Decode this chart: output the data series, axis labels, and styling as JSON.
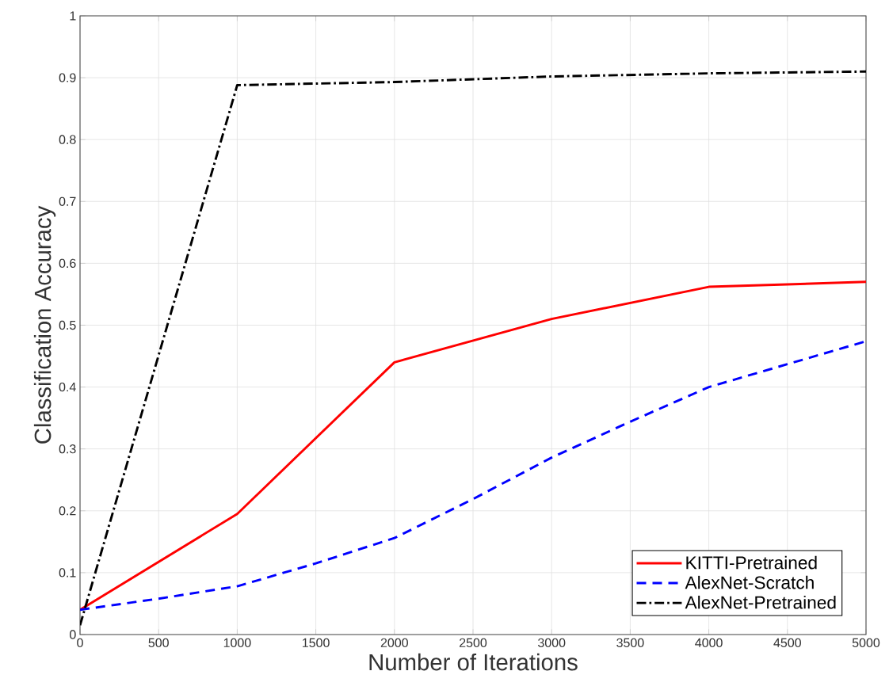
{
  "chart_data": {
    "type": "line",
    "xlabel": "Number of Iterations",
    "ylabel": "Classification Accuracy",
    "xlim": [
      0,
      5000
    ],
    "ylim": [
      0,
      1
    ],
    "xticks": [
      0,
      500,
      1000,
      1500,
      2000,
      2500,
      3000,
      3500,
      4000,
      4500,
      5000
    ],
    "yticks": [
      0,
      0.1,
      0.2,
      0.3,
      0.4,
      0.5,
      0.6,
      0.7,
      0.8,
      0.9,
      1
    ],
    "grid": true,
    "legend": "bottom right",
    "series": [
      {
        "name": "KITTI-Pretrained",
        "color": "#ff0000",
        "line_style": "solid",
        "x": [
          0,
          1000,
          2000,
          3000,
          4000,
          5000
        ],
        "values": [
          0.04,
          0.195,
          0.44,
          0.51,
          0.562,
          0.57
        ]
      },
      {
        "name": "AlexNet-Scratch",
        "color": "#0000ff",
        "line_style": "dashed",
        "x": [
          0,
          500,
          1000,
          1500,
          2000,
          2500,
          3000,
          3500,
          4000,
          4500,
          5000
        ],
        "values": [
          0.04,
          0.058,
          0.078,
          0.115,
          0.156,
          0.219,
          0.286,
          0.344,
          0.4,
          0.437,
          0.474
        ]
      },
      {
        "name": "AlexNet-Pretrained",
        "color": "#000000",
        "line_style": "dashdot",
        "x": [
          0,
          1000,
          2000,
          3000,
          4000,
          5000
        ],
        "values": [
          0.015,
          0.888,
          0.893,
          0.902,
          0.907,
          0.91
        ]
      }
    ]
  }
}
